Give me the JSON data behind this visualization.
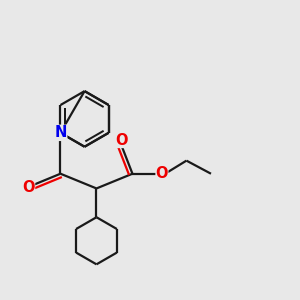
{
  "bg_color": "#e8e8e8",
  "bond_color": "#1a1a1a",
  "N_color": "#0000ee",
  "O_color": "#ee0000",
  "line_width": 1.6,
  "font_size": 10.5,
  "bx": 3.0,
  "by": 6.2,
  "br": 0.85,
  "xlim": [
    0.5,
    9.5
  ],
  "ylim": [
    1.0,
    9.5
  ]
}
